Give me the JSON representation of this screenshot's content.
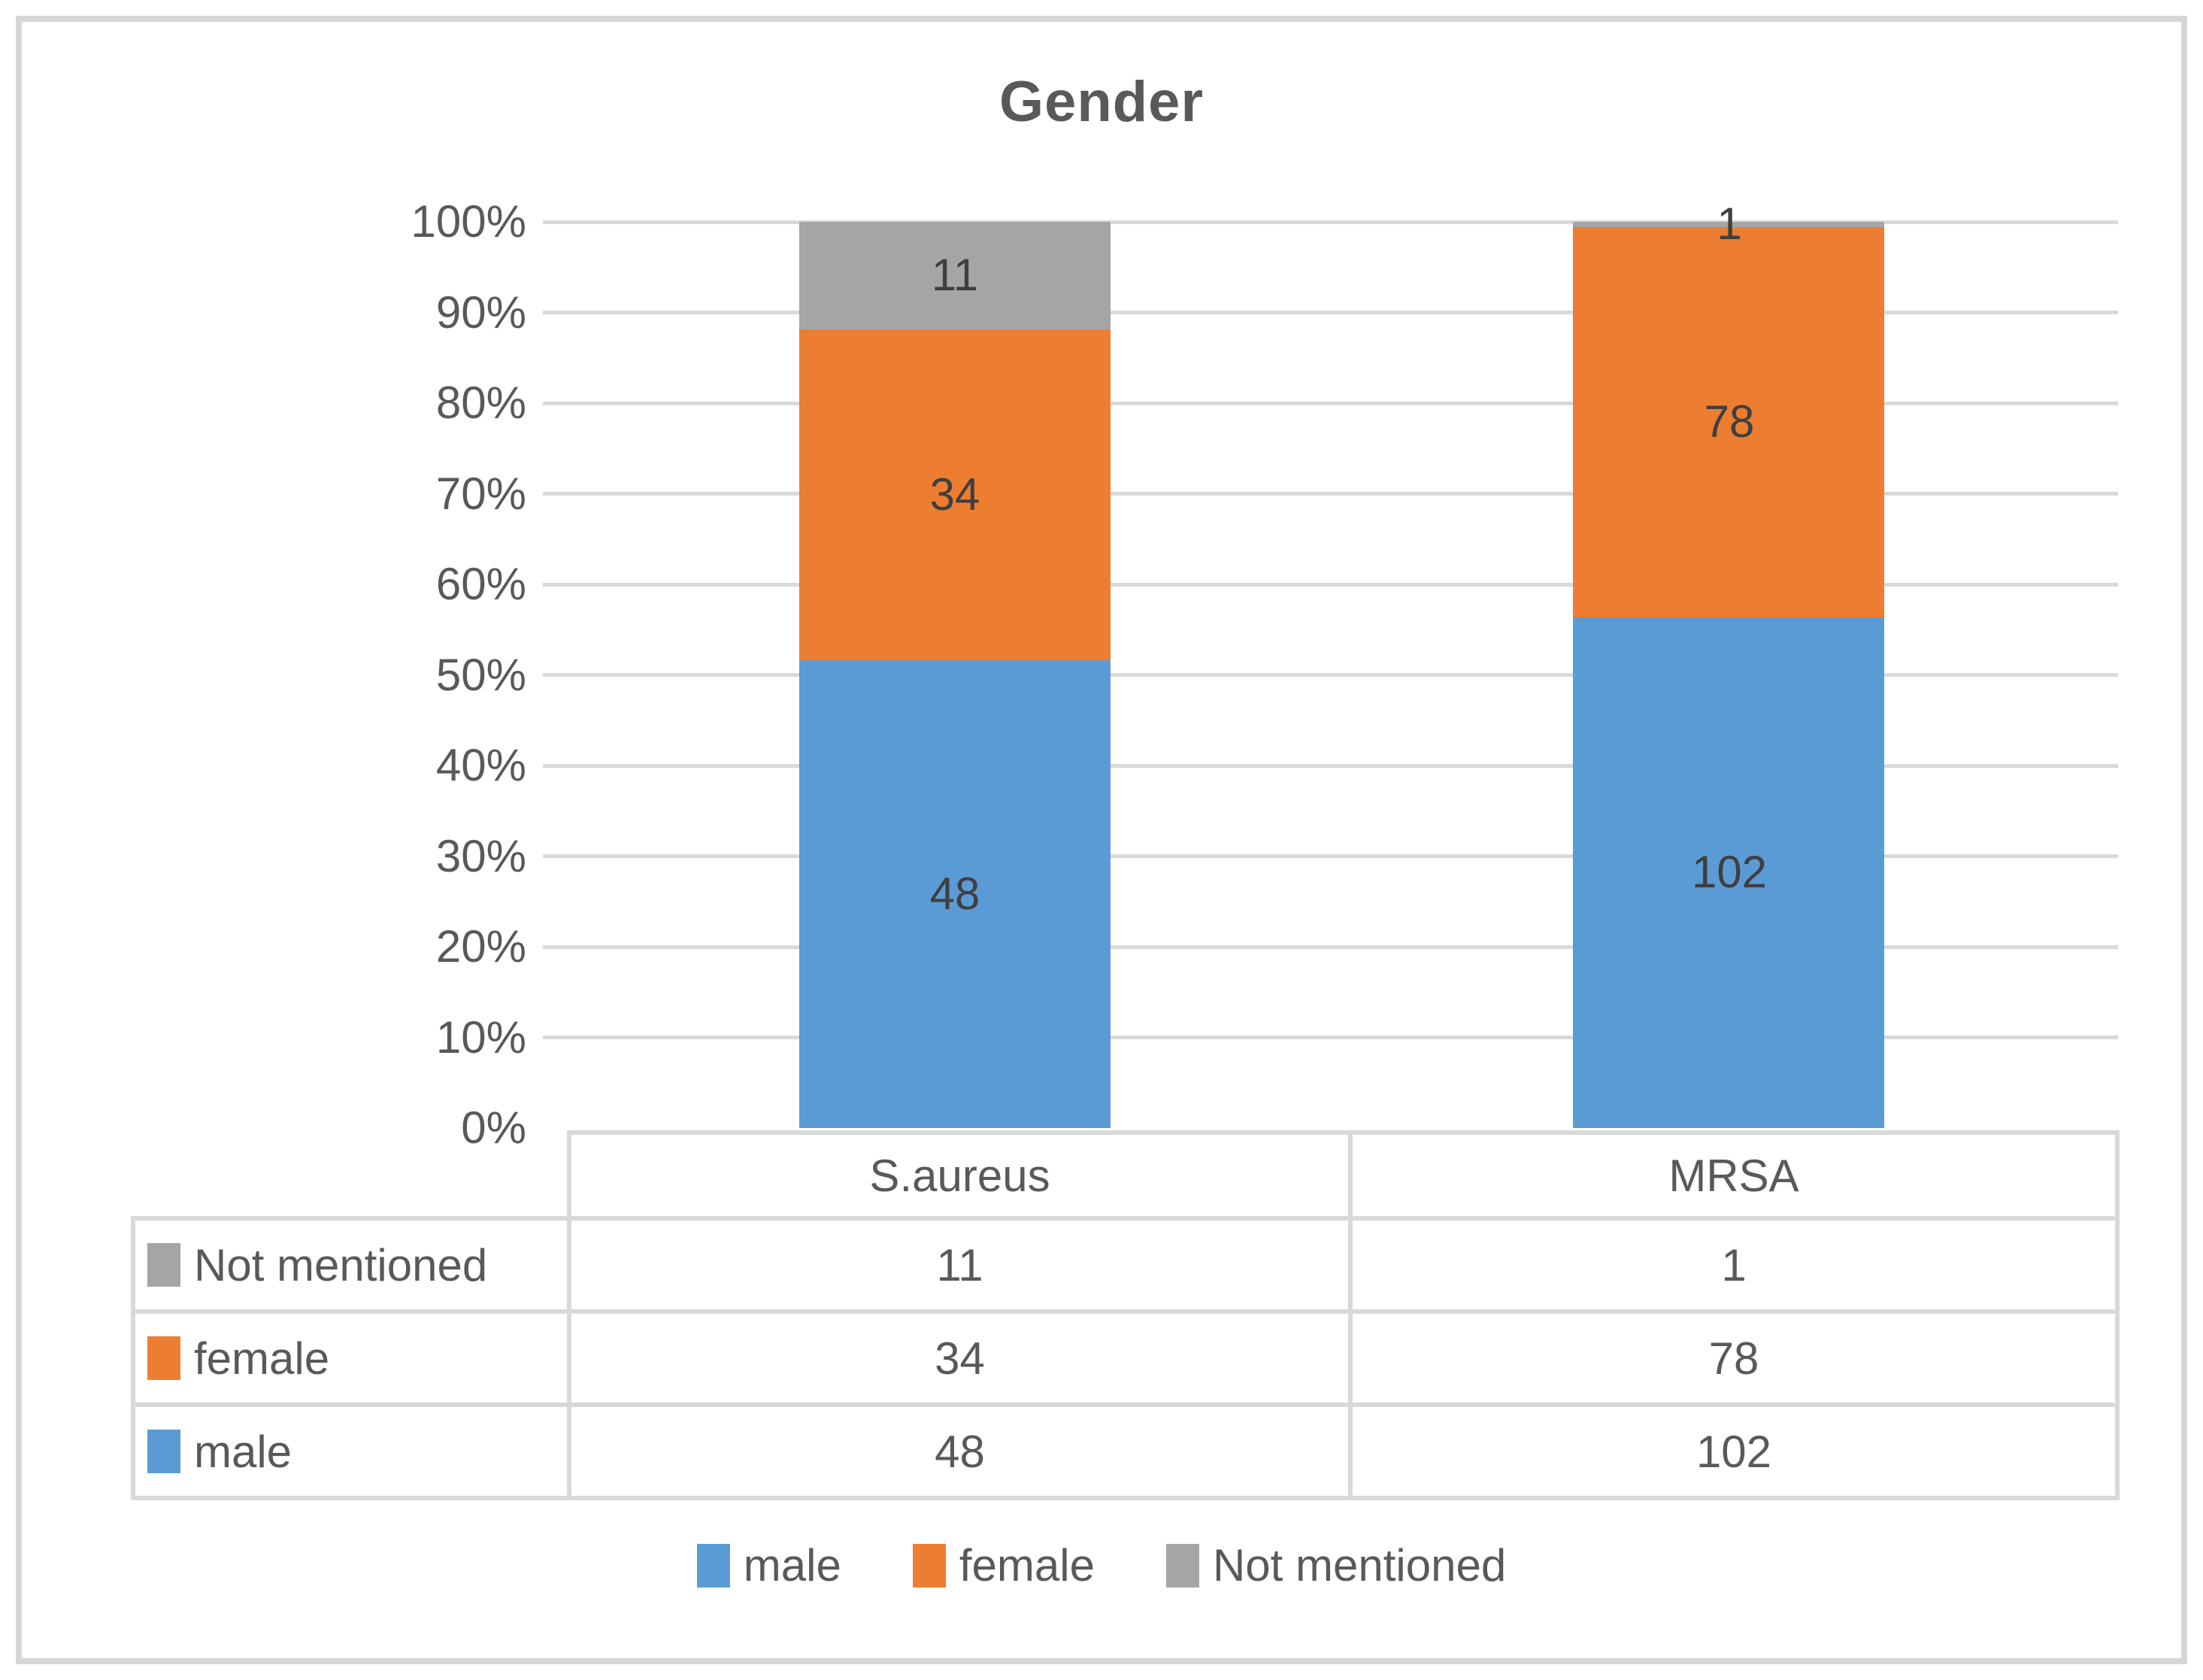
{
  "title": "Gender",
  "chart_data": {
    "type": "bar",
    "subtype": "100-percent-stacked-column",
    "title": "Gender",
    "categories": [
      "S.aureus",
      "MRSA"
    ],
    "series": [
      {
        "name": "male",
        "color": "#5B9BD5",
        "values": [
          48,
          102
        ]
      },
      {
        "name": "female",
        "color": "#ED7D31",
        "values": [
          34,
          78
        ]
      },
      {
        "name": "Not mentioned",
        "color": "#A5A5A5",
        "values": [
          11,
          1
        ]
      }
    ],
    "stack_order_bottom_to_top": [
      "male",
      "female",
      "Not mentioned"
    ],
    "y_axis": {
      "min": "0%",
      "max": "100%",
      "ticks": [
        "100%",
        "90%",
        "80%",
        "70%",
        "60%",
        "50%",
        "40%",
        "30%",
        "20%",
        "10%",
        "0%"
      ]
    },
    "grid": true,
    "gridline_color": "#D9D9D9",
    "data_labels": {
      "S.aureus": {
        "male": 48,
        "female": 34,
        "Not mentioned": 11
      },
      "MRSA": {
        "male": 102,
        "female": 78,
        "Not mentioned": 1
      }
    },
    "legend_position": "bottom",
    "data_table_shown": true
  },
  "colors": {
    "male": "#5B9BD5",
    "female": "#ED7D31",
    "not_mentioned": "#A5A5A5",
    "text": "#595959",
    "data_label_text": "#3F3F3F",
    "gridline": "#D9D9D9",
    "frame_border": "#D6D6D6"
  }
}
